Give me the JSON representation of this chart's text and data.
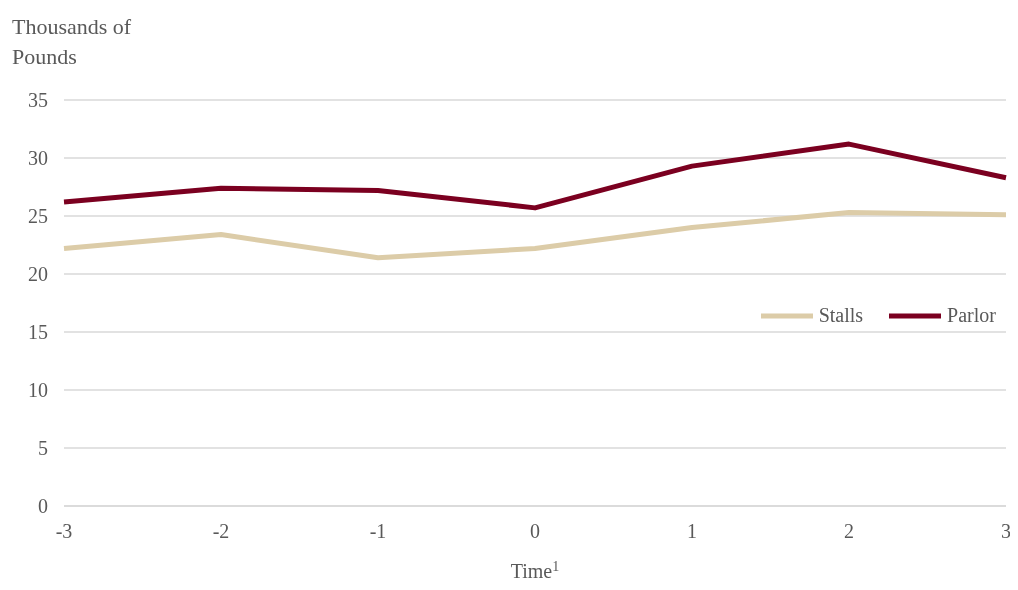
{
  "chart_data": {
    "type": "line",
    "ylabel": "Thousands of Pounds",
    "xlabel": "Time$^{1}$",
    "categories": [
      "-3",
      "-2",
      "-1",
      "0",
      "1",
      "2",
      "3"
    ],
    "series": [
      {
        "name": "Stalls",
        "color": "#dccca8",
        "values": [
          22.2,
          23.4,
          21.4,
          22.2,
          24.0,
          25.3,
          25.1
        ]
      },
      {
        "name": "Parlor",
        "color": "#7b0020",
        "values": [
          26.2,
          27.4,
          27.2,
          25.7,
          29.3,
          31.2,
          28.3
        ]
      }
    ],
    "ylim": [
      0,
      35
    ],
    "yticks": [
      0,
      5,
      10,
      15,
      20,
      25,
      30,
      35
    ],
    "grid": "y",
    "legend": "right",
    "marker": "none",
    "line_style": "solid"
  }
}
